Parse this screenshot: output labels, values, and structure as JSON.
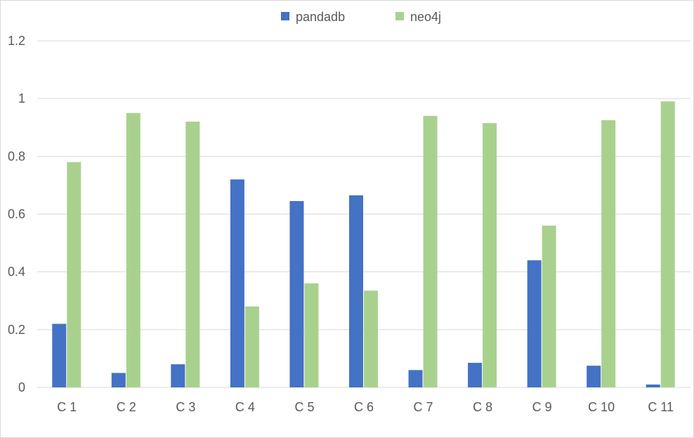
{
  "chart_data": {
    "type": "bar",
    "categories": [
      "C 1",
      "C 2",
      "C 3",
      "C 4",
      "C 5",
      "C 6",
      "C 7",
      "C 8",
      "C 9",
      "C 10",
      "C 11"
    ],
    "series": [
      {
        "name": "pandadb",
        "color": "#4472C4",
        "values": [
          0.22,
          0.05,
          0.08,
          0.72,
          0.645,
          0.665,
          0.06,
          0.085,
          0.44,
          0.075,
          0.01
        ]
      },
      {
        "name": "neo4j",
        "color": "#A9D18E",
        "values": [
          0.78,
          0.95,
          0.92,
          0.28,
          0.36,
          0.335,
          0.94,
          0.915,
          0.56,
          0.925,
          0.99
        ]
      }
    ],
    "ylim": [
      0,
      1.2
    ],
    "yticks": [
      "0",
      "0.2",
      "0.4",
      "0.6",
      "0.8",
      "1",
      "1.2"
    ],
    "grid": true,
    "legend": "top-center"
  }
}
